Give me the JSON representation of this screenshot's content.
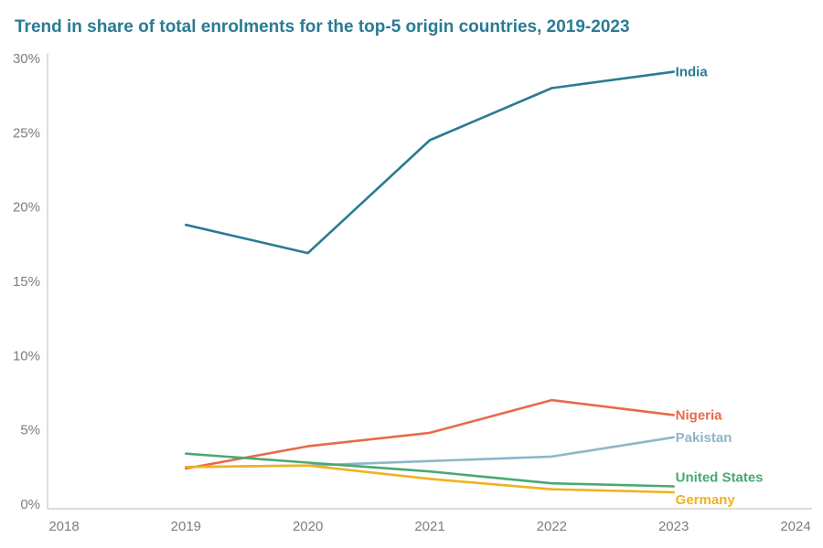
{
  "chart_data": {
    "type": "line",
    "title": "Trend in share of total enrolments for the top-5 origin countries, 2019-2023",
    "xlabel": "",
    "ylabel": "",
    "xlim": [
      2018,
      2024
    ],
    "ylim": [
      0,
      30
    ],
    "x_ticks": [
      {
        "value": 2018,
        "label": "2018"
      },
      {
        "value": 2019,
        "label": "2019"
      },
      {
        "value": 2020,
        "label": "2020"
      },
      {
        "value": 2021,
        "label": "2021"
      },
      {
        "value": 2022,
        "label": "2022"
      },
      {
        "value": 2023,
        "label": "2023"
      },
      {
        "value": 2024,
        "label": "2024"
      }
    ],
    "y_ticks": [
      {
        "value": 0,
        "label": "0%"
      },
      {
        "value": 5,
        "label": "5%"
      },
      {
        "value": 10,
        "label": "10%"
      },
      {
        "value": 15,
        "label": "15%"
      },
      {
        "value": 20,
        "label": "20%"
      },
      {
        "value": 25,
        "label": "25%"
      },
      {
        "value": 30,
        "label": "30%"
      }
    ],
    "x": [
      2019,
      2020,
      2021,
      2022,
      2023
    ],
    "series": [
      {
        "name": "India",
        "color": "#2a7b93",
        "values": [
          18.8,
          16.9,
          24.5,
          28.0,
          29.1
        ],
        "label_offset": 0
      },
      {
        "name": "Nigeria",
        "color": "#e8694a",
        "values": [
          2.4,
          3.9,
          4.8,
          7.0,
          6.0
        ],
        "label_offset": 0
      },
      {
        "name": "Pakistan",
        "color": "#8db7c8",
        "values": [
          2.5,
          2.6,
          2.9,
          3.2,
          4.5
        ],
        "label_offset": 0
      },
      {
        "name": "United States",
        "color": "#4aa872",
        "values": [
          3.4,
          2.8,
          2.2,
          1.4,
          1.2
        ],
        "label_offset": -10
      },
      {
        "name": "Germany",
        "color": "#f0b21f",
        "values": [
          2.5,
          2.6,
          1.7,
          1.0,
          0.8
        ],
        "label_offset": 8
      }
    ],
    "grid": false,
    "legend": "inline-right"
  }
}
